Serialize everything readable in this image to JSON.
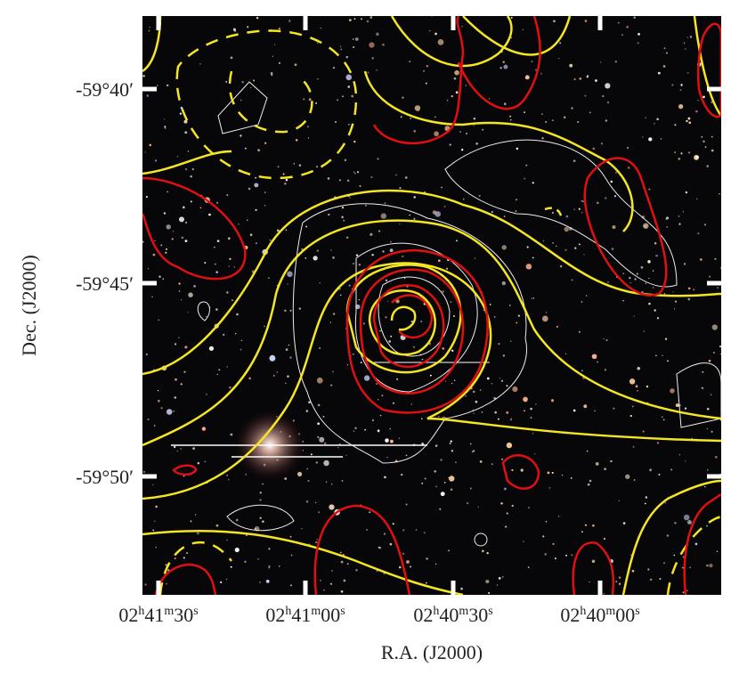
{
  "image": {
    "x_axis": {
      "label": "R.A. (J2000)",
      "ticks": [
        [
          "02",
          "h",
          "41",
          "m",
          "30",
          "s"
        ],
        [
          "02",
          "h",
          "41",
          "m",
          "00",
          "s"
        ],
        [
          "02",
          "h",
          "40",
          "m",
          "30",
          "s"
        ],
        [
          "02",
          "h",
          "40",
          "m",
          "00",
          "s"
        ]
      ]
    },
    "y_axis": {
      "label": "Dec. (J2000)",
      "ticks": [
        "-59°40′",
        "-59°45′",
        "-59°50′"
      ]
    }
  }
}
